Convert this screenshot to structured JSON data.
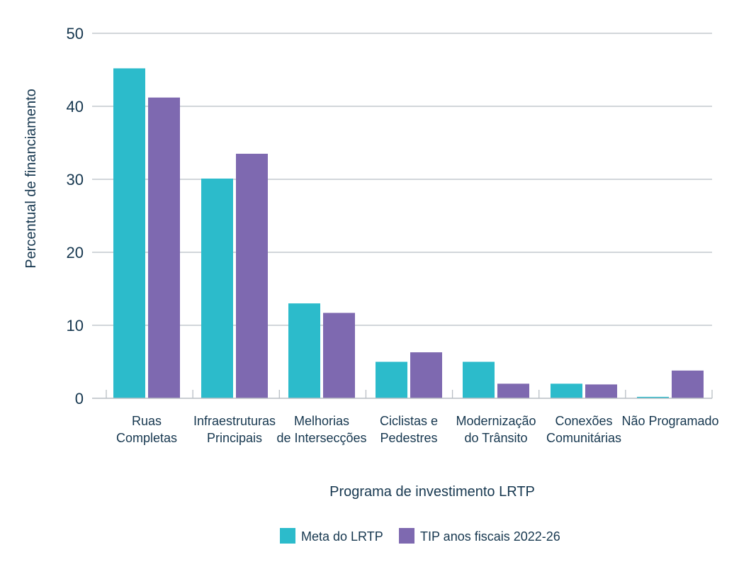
{
  "chart_data": {
    "type": "bar",
    "categories": [
      "Ruas\nCompletas",
      "Infraestruturas\nPrincipais",
      "Melhorias\nde Intersecções",
      "Ciclistas e\nPedestres",
      "Modernização\ndo Trânsito",
      "Conexões\nComunitárias",
      "Não Programado"
    ],
    "series": [
      {
        "name": "Meta do LRTP",
        "color": "#2cbbcb",
        "values": [
          45.2,
          30.1,
          13.0,
          5.0,
          5.0,
          2.0,
          0.2
        ]
      },
      {
        "name": "TIP anos fiscais 2022-26",
        "color": "#7e69b0",
        "values": [
          41.2,
          33.5,
          11.7,
          6.3,
          2.0,
          1.9,
          3.8
        ]
      }
    ],
    "xlabel": "Programa de investimento LRTP",
    "ylabel": "Percentual de financiamento",
    "ylim": [
      0,
      50
    ],
    "yticks": [
      0,
      10,
      20,
      30,
      40,
      50
    ],
    "grid": true,
    "legend_position": "bottom-center",
    "axis_color": "#16374f",
    "grid_color": "#b8bec4"
  }
}
